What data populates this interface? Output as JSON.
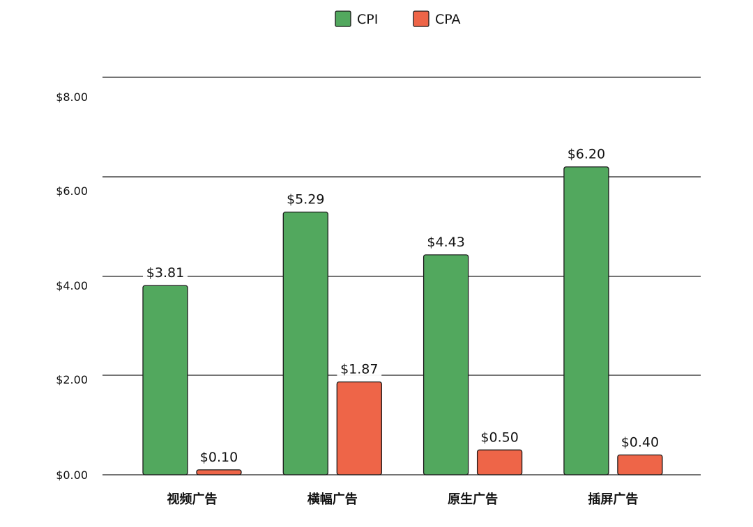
{
  "chart_data": {
    "type": "bar",
    "title": "",
    "xlabel": "",
    "ylabel": "",
    "categories": [
      "视频广告",
      "横幅广告",
      "原生广告",
      "插屏广告"
    ],
    "series": [
      {
        "name": "CPI",
        "values": [
          3.81,
          5.29,
          4.43,
          6.2
        ],
        "labels": [
          "$3.81",
          "$5.29",
          "$4.43",
          "$6.20"
        ],
        "color": "#52a85e"
      },
      {
        "name": "CPA",
        "values": [
          0.1,
          1.87,
          0.5,
          0.4
        ],
        "labels": [
          "$0.10",
          "$1.87",
          "$0.50",
          "$0.40"
        ],
        "color": "#ee6548"
      }
    ],
    "y_ticks": [
      0,
      2,
      4,
      6,
      8
    ],
    "y_tick_labels": [
      "$0.00",
      "$2.00",
      "$4.00",
      "$6.00",
      "$8.00"
    ],
    "ylim": [
      0,
      8
    ],
    "grid": true,
    "legend_position": "top-center"
  }
}
